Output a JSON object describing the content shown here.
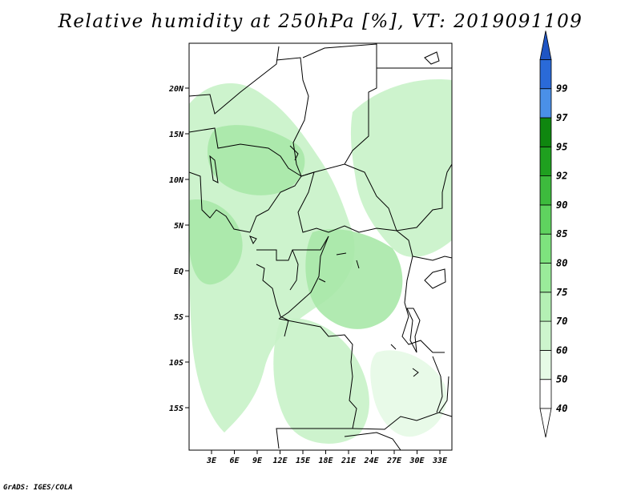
{
  "title": "Relative humidity at 250hPa [%], VT: 2019091109",
  "credit": "GrADS: IGES/COLA",
  "map": {
    "lat_labels": [
      "20N",
      "15N",
      "10N",
      "5N",
      "EQ",
      "5S",
      "10S",
      "15S"
    ],
    "lon_labels": [
      "3E",
      "6E",
      "9E",
      "12E",
      "15E",
      "18E",
      "21E",
      "24E",
      "27E",
      "30E",
      "33E"
    ],
    "colors": {
      "humid_light": "#e6fae6",
      "humid_mid": "#c8f2c8",
      "humid_high": "#a8e8a8",
      "border": "#000000"
    }
  },
  "colorbar": {
    "levels": [
      {
        "label": "40",
        "color": "#ffffff"
      },
      {
        "label": "50",
        "color": "#e6fbe6"
      },
      {
        "label": "60",
        "color": "#cdf5cd"
      },
      {
        "label": "70",
        "color": "#b4f0b4"
      },
      {
        "label": "75",
        "color": "#9aeb9a"
      },
      {
        "label": "80",
        "color": "#7ee37e"
      },
      {
        "label": "85",
        "color": "#5fd35f"
      },
      {
        "label": "90",
        "color": "#3dbb3d"
      },
      {
        "label": "92",
        "color": "#1fa01f"
      },
      {
        "label": "95",
        "color": "#0f870f"
      },
      {
        "label": "97",
        "color": "#4a90e8"
      },
      {
        "label": "99",
        "color": "#2a6ad8"
      }
    ],
    "top_arrow_color": "#1f55c4"
  }
}
